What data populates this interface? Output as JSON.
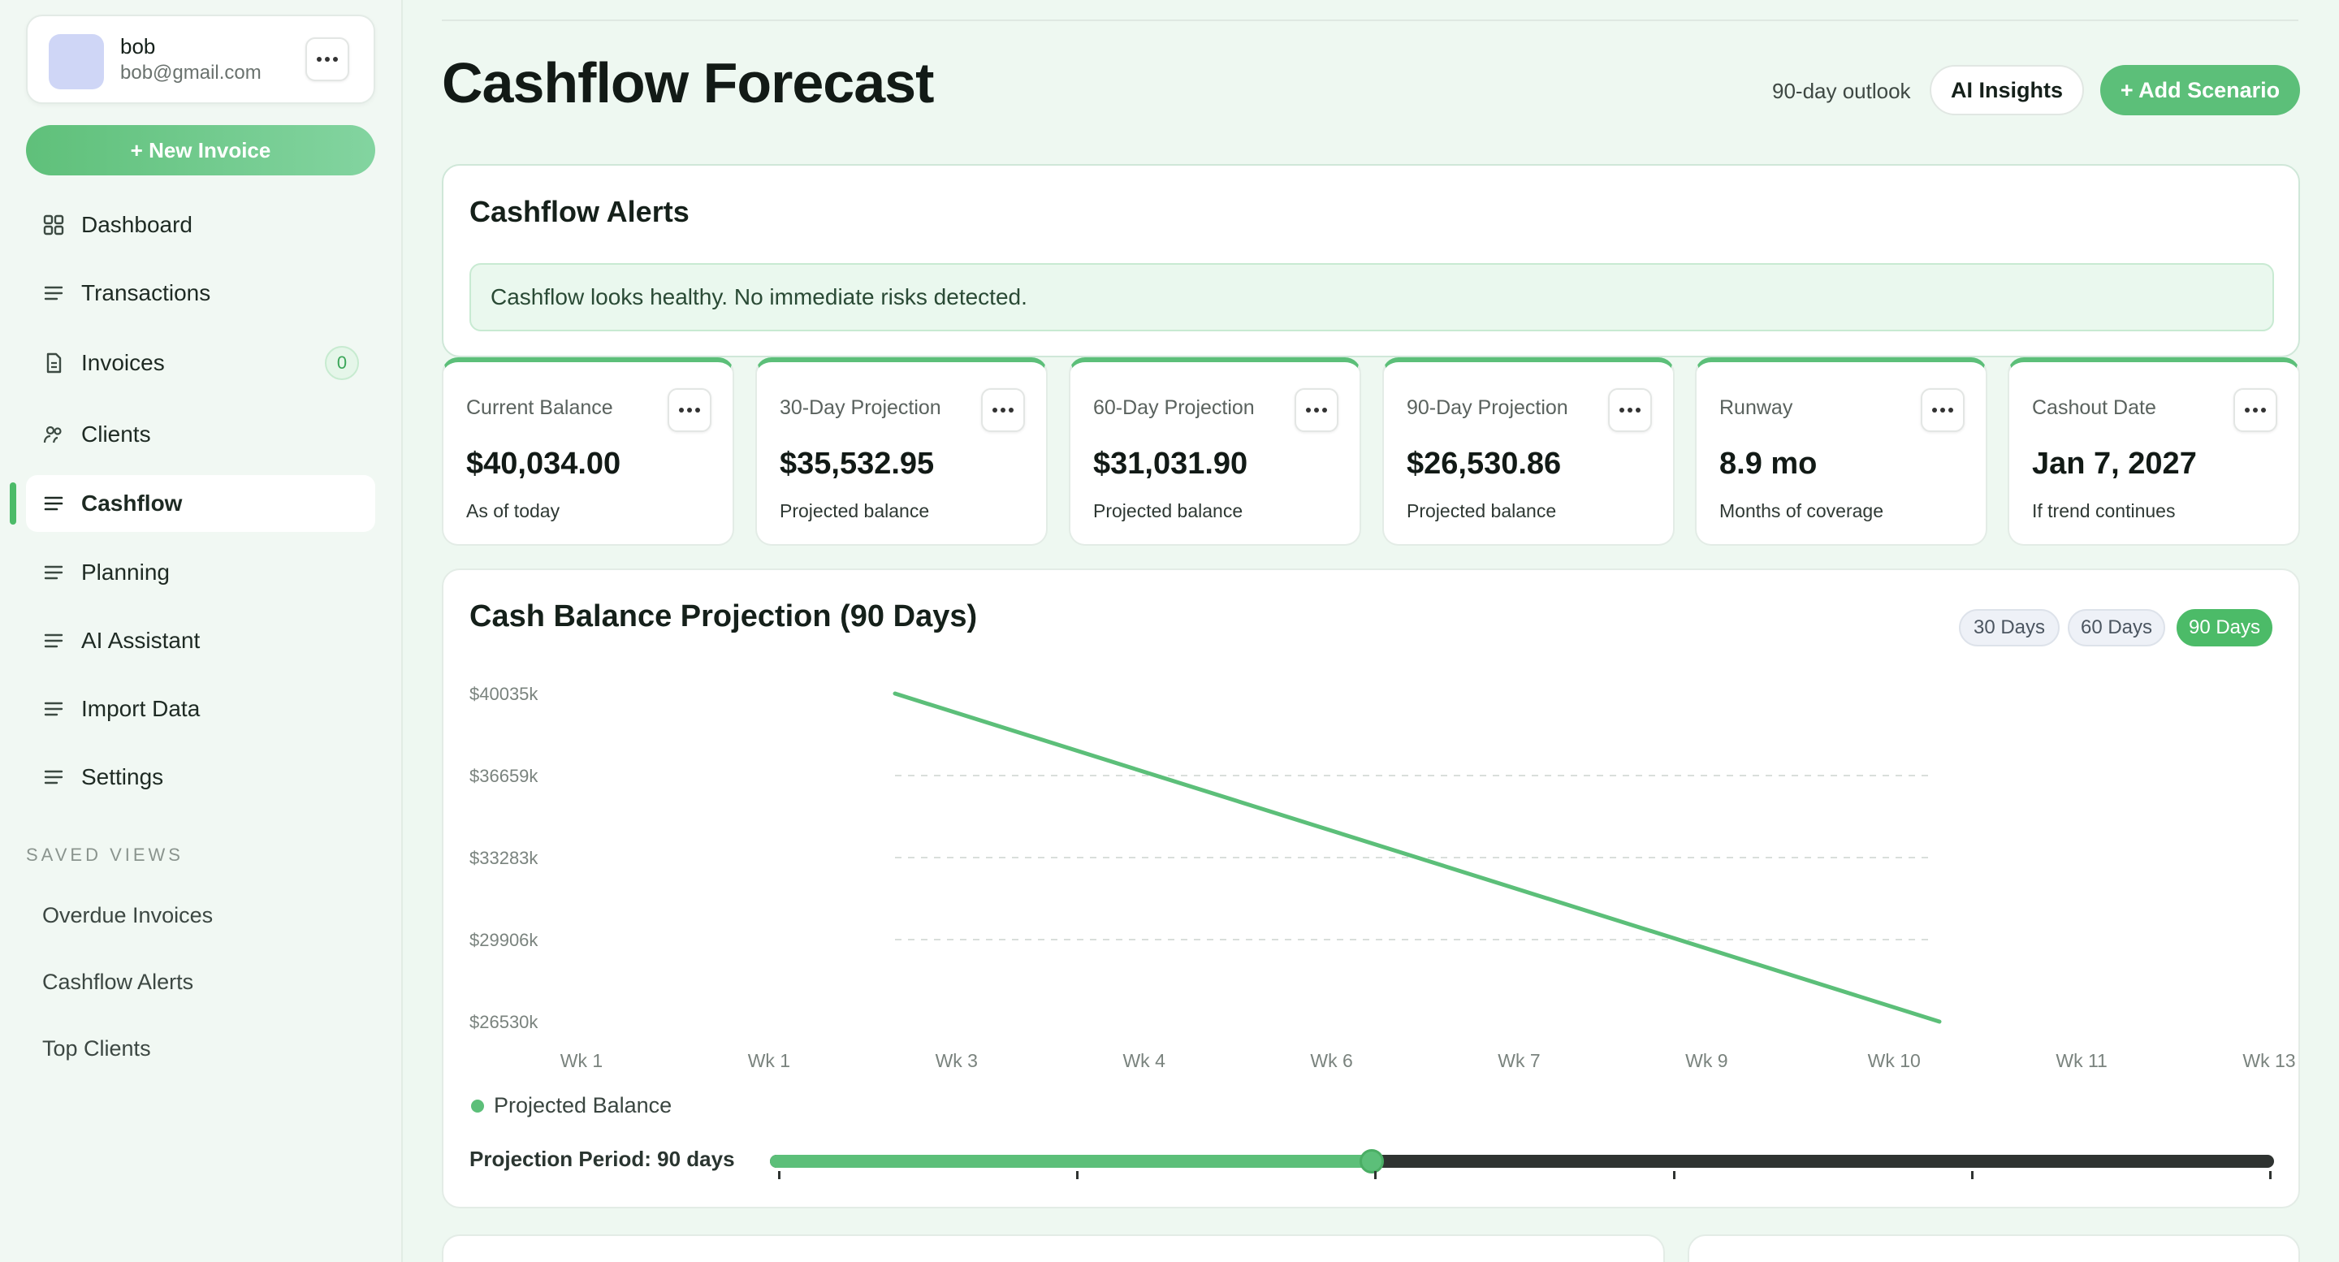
{
  "user": {
    "name": "bob",
    "email": "bob@gmail.com"
  },
  "sidebar": {
    "new_invoice": "+ New Invoice",
    "items": [
      {
        "label": "Dashboard",
        "icon": "grid-icon"
      },
      {
        "label": "Transactions",
        "icon": "list-icon"
      },
      {
        "label": "Invoices",
        "icon": "document-icon",
        "badge": "0"
      },
      {
        "label": "Clients",
        "icon": "users-icon"
      },
      {
        "label": "Cashflow",
        "icon": "list-icon",
        "active": true
      },
      {
        "label": "Planning",
        "icon": "list-icon"
      },
      {
        "label": "AI Assistant",
        "icon": "list-icon"
      },
      {
        "label": "Import Data",
        "icon": "list-icon"
      },
      {
        "label": "Settings",
        "icon": "list-icon"
      }
    ],
    "saved_heading": "SAVED VIEWS",
    "saved": [
      "Overdue Invoices",
      "Cashflow Alerts",
      "Top Clients"
    ]
  },
  "header": {
    "title": "Cashflow Forecast",
    "outlook": "90-day outlook",
    "ai_insights": "AI Insights",
    "add_scenario": "+ Add Scenario"
  },
  "alerts": {
    "title": "Cashflow Alerts",
    "message": "Cashflow looks healthy. No immediate risks detected."
  },
  "stats": [
    {
      "label": "Current Balance",
      "value": "$40,034.00",
      "sub": "As of today"
    },
    {
      "label": "30-Day Projection",
      "value": "$35,532.95",
      "sub": "Projected balance"
    },
    {
      "label": "60-Day Projection",
      "value": "$31,031.90",
      "sub": "Projected balance"
    },
    {
      "label": "90-Day Projection",
      "value": "$26,530.86",
      "sub": "Projected balance"
    },
    {
      "label": "Runway",
      "value": "8.9 mo",
      "sub": "Months of coverage"
    },
    {
      "label": "Cashout Date",
      "value": "Jan 7, 2027",
      "sub": "If trend continues"
    }
  ],
  "chart": {
    "title": "Cash Balance Projection (90 Days)",
    "ranges": [
      {
        "label": "30 Days",
        "active": false
      },
      {
        "label": "60 Days",
        "active": false
      },
      {
        "label": "90 Days",
        "active": true
      }
    ],
    "period_label": "Projection Period: 90 days",
    "period_fraction": 0.4,
    "accent": "#5cbf79"
  },
  "chart_data": {
    "type": "line",
    "title": "Cash Balance Projection (90 Days)",
    "y_ticks": [
      "$40035k",
      "$36659k",
      "$33283k",
      "$29906k",
      "$26530k"
    ],
    "x_ticks": [
      "Wk 1",
      "Wk 1",
      "Wk 3",
      "Wk 4",
      "Wk 6",
      "Wk 7",
      "Wk 9",
      "Wk 10",
      "Wk 11",
      "Wk 13"
    ],
    "ylim": [
      26530,
      40035
    ],
    "grid": true,
    "series": [
      {
        "name": "Projected Balance",
        "x": [
          0,
          90
        ],
        "values": [
          40034,
          26530.86
        ]
      }
    ],
    "legend": "bottom-left"
  }
}
